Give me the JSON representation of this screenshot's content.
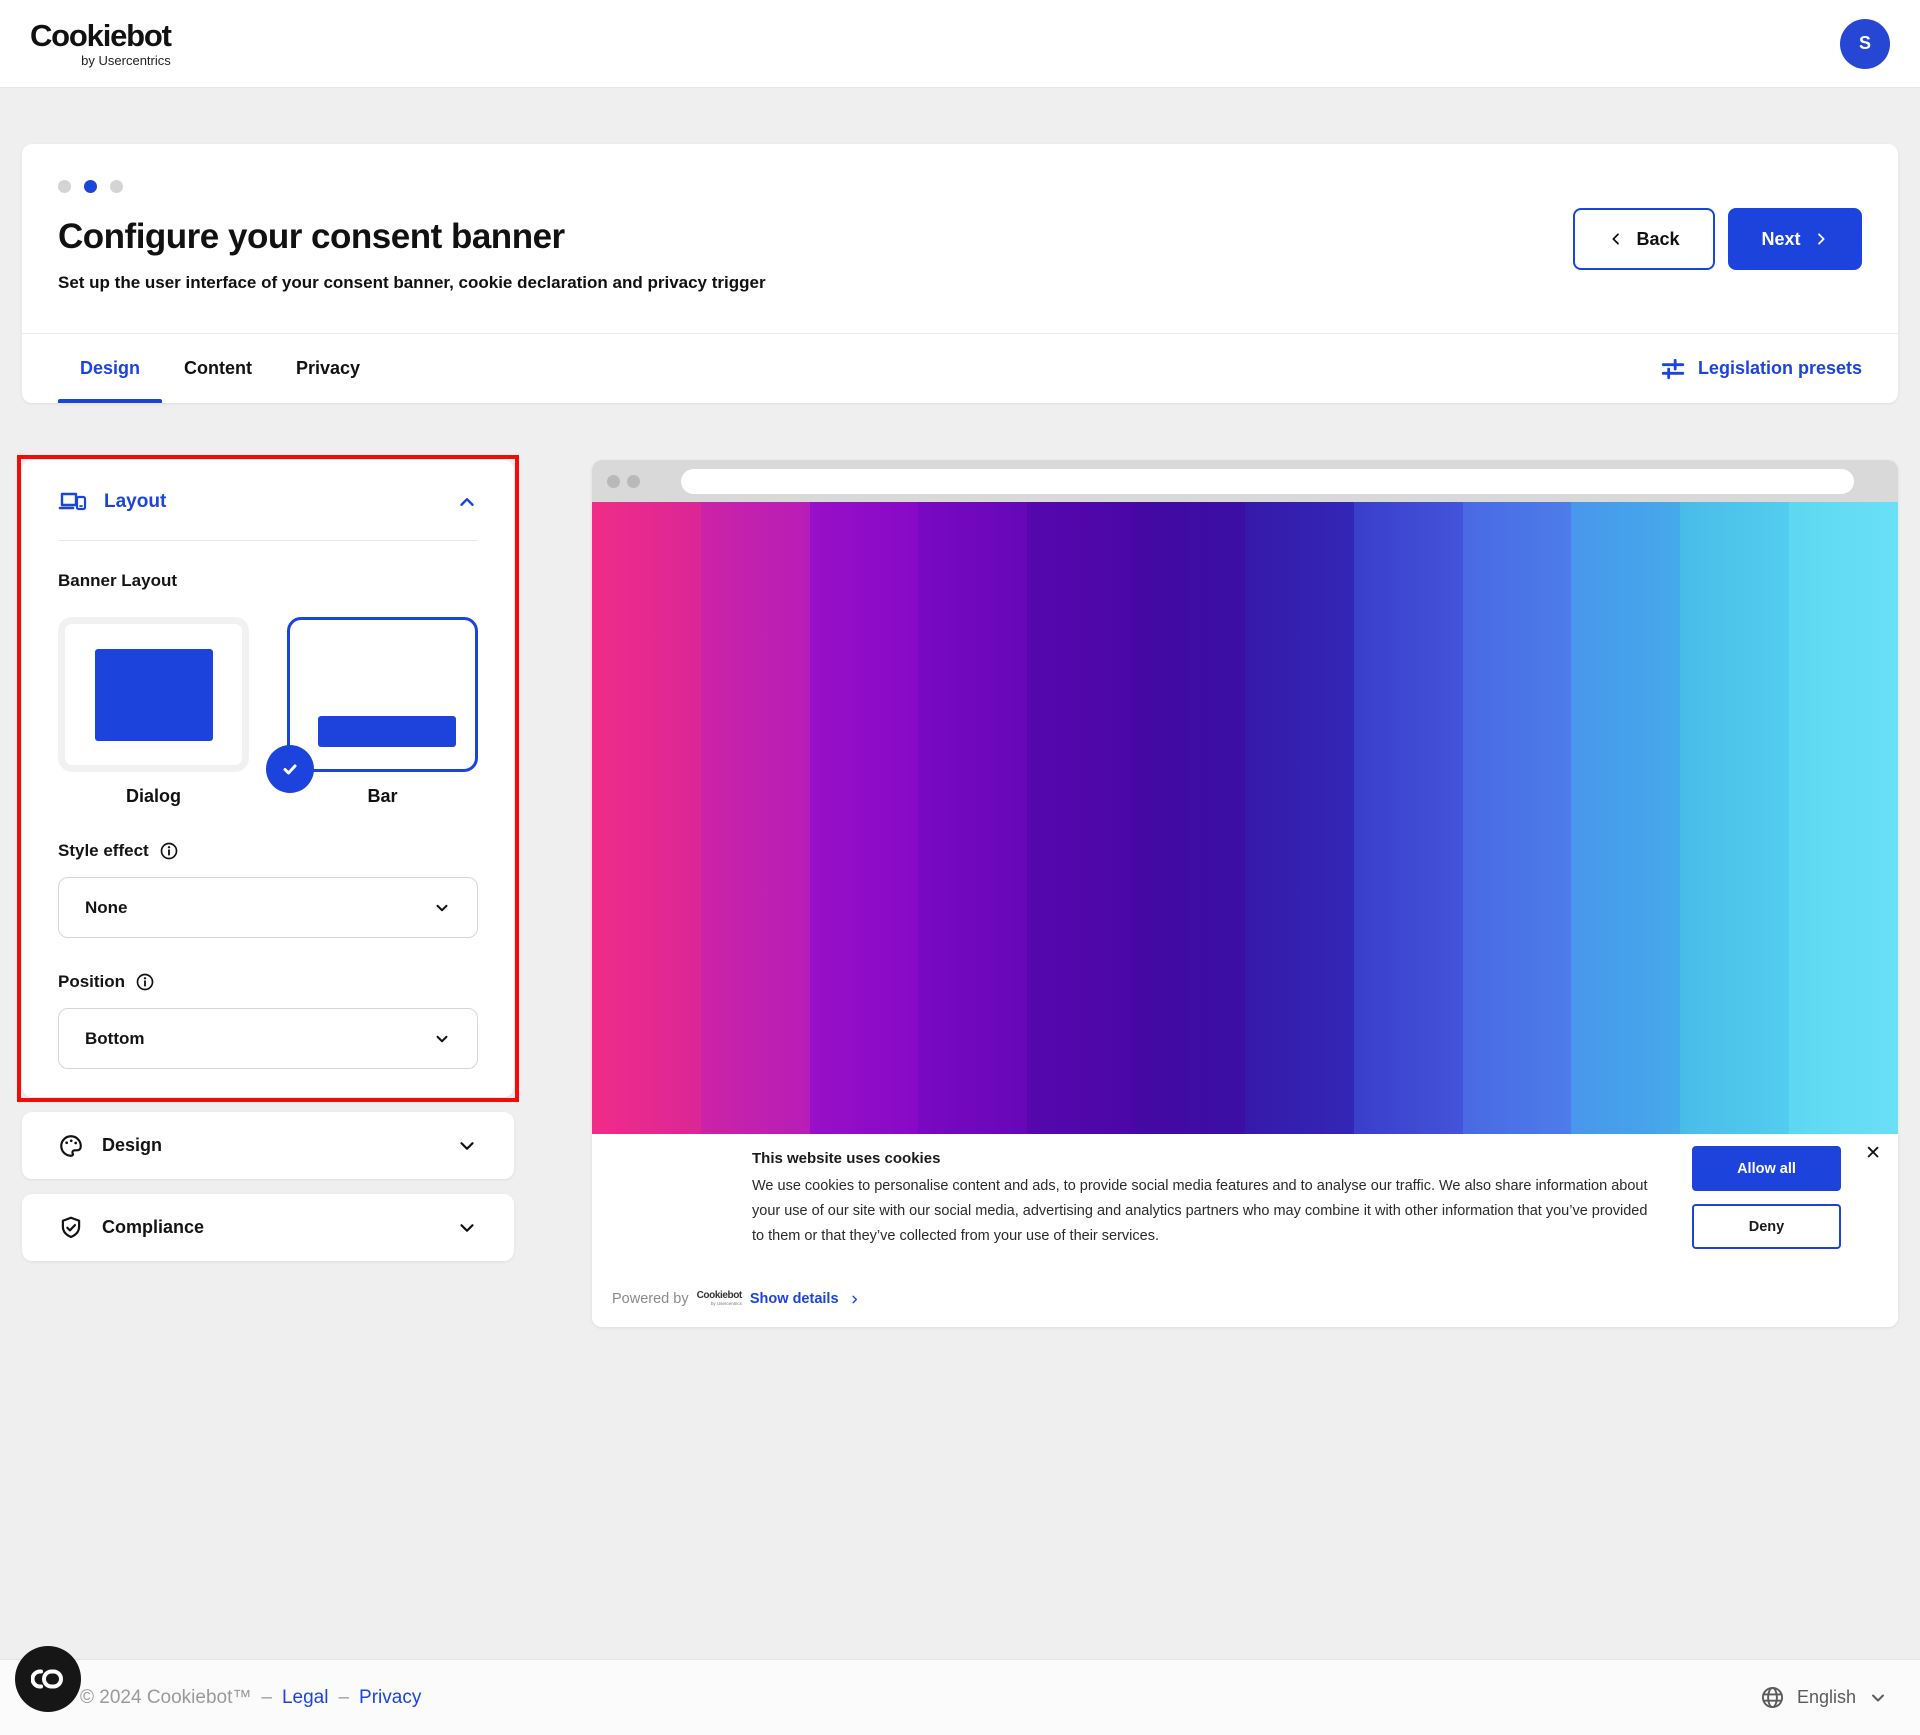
{
  "header": {
    "logo": "Cookiebot",
    "logo_sub": "by Usercentrics",
    "avatar_initial": "S"
  },
  "wizard": {
    "total_steps": 3,
    "active_step": 2,
    "title": "Configure your consent banner",
    "subtitle": "Set up the user interface of your consent banner, cookie declaration and privacy trigger",
    "back_label": "Back",
    "next_label": "Next"
  },
  "tabs": [
    {
      "label": "Design",
      "active": true
    },
    {
      "label": "Content",
      "active": false
    },
    {
      "label": "Privacy",
      "active": false
    }
  ],
  "legislation": {
    "label": "Legislation presets"
  },
  "layout_panel": {
    "title": "Layout",
    "banner_layout_label": "Banner Layout",
    "options": [
      {
        "label": "Dialog",
        "selected": false
      },
      {
        "label": "Bar",
        "selected": true
      }
    ],
    "style_effect": {
      "label": "Style effect",
      "value": "None"
    },
    "position": {
      "label": "Position",
      "value": "Bottom"
    }
  },
  "design_panel": {
    "title": "Design"
  },
  "compliance_panel": {
    "title": "Compliance"
  },
  "preview": {
    "cookie_banner": {
      "title": "This website uses cookies",
      "description": "We use cookies to personalise content and ads, to provide social media features and to analyse our traffic. We also share information about your use of our site with our social media, advertising and analytics partners who may combine it with other information that you’ve provided to them or that they’ve collected from your use of their services.",
      "powered_by_label": "Powered by",
      "powered_by_brand": "Cookiebot",
      "powered_by_brand_sub": "by Usercentrics",
      "show_details_label": "Show details",
      "allow_all_label": "Allow all",
      "deny_label": "Deny",
      "close_glyph": "✕"
    },
    "gradient_bands": [
      {
        "from": "#f02c87",
        "to": "#db2697"
      },
      {
        "from": "#cb23a6",
        "to": "#b81db8"
      },
      {
        "from": "#9810c7",
        "to": "#8709c7"
      },
      {
        "from": "#7a08c2",
        "to": "#6607b8"
      },
      {
        "from": "#5607ae",
        "to": "#4a07a7"
      },
      {
        "from": "#4408a3",
        "to": "#3b0fa4"
      },
      {
        "from": "#3619aa",
        "to": "#3327b7"
      },
      {
        "from": "#3a3ecb",
        "to": "#4354da"
      },
      {
        "from": "#4a69e4",
        "to": "#4c7de9"
      },
      {
        "from": "#4897ec",
        "to": "#45aaea"
      },
      {
        "from": "#48bce9",
        "to": "#53cdef"
      },
      {
        "from": "#5dd7f2",
        "to": "#69e0f6"
      }
    ]
  },
  "footer": {
    "copyright": "© 2024 Cookiebot™",
    "separator": "–",
    "links": [
      {
        "label": "Legal"
      },
      {
        "label": "Privacy"
      }
    ],
    "language": "English",
    "chat_monogram": "co"
  },
  "colors": {
    "accent": "#1c44dd",
    "highlight_red": "#f10c0c",
    "page_bg": "#efefef",
    "avatar_blue": "#2547d3",
    "chrome_gray": "#d9d9d9"
  }
}
